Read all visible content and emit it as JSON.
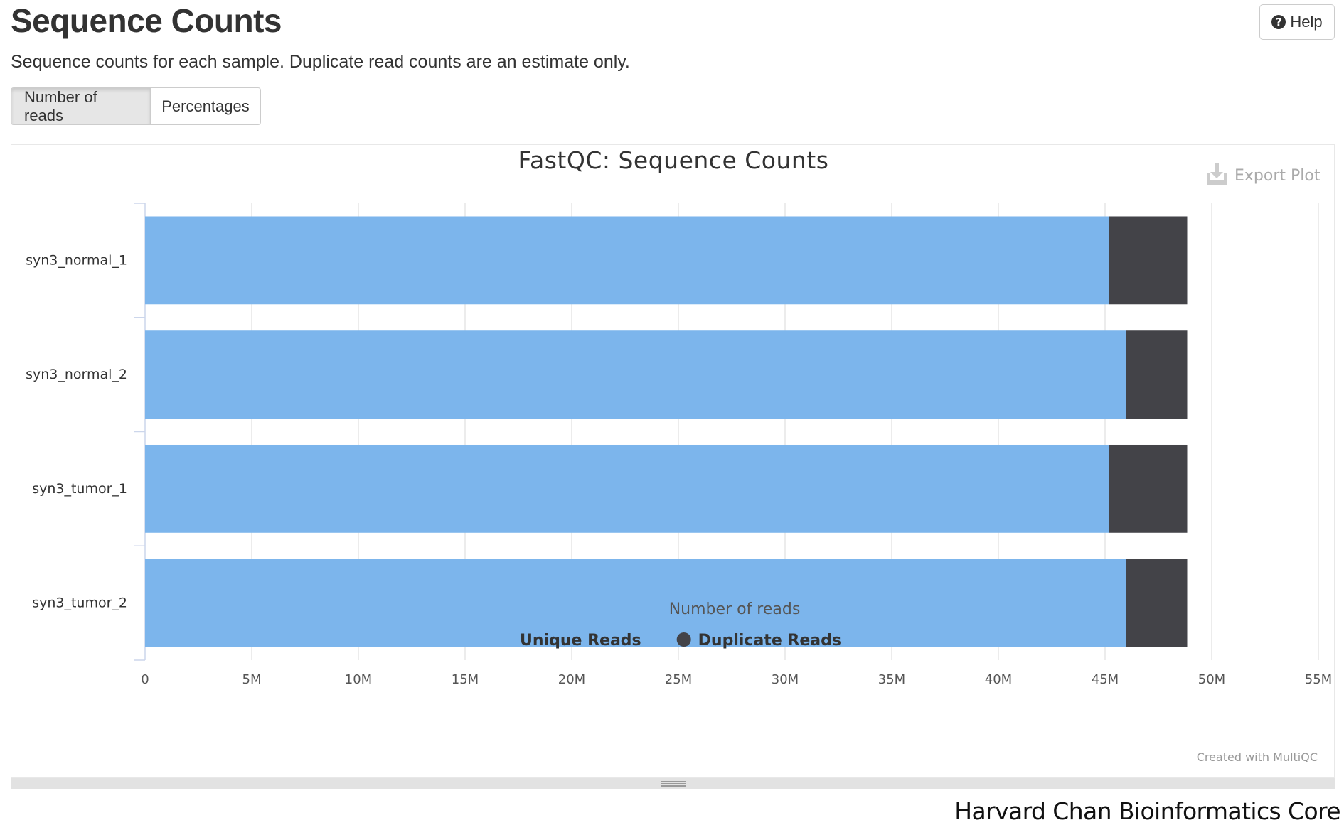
{
  "page": {
    "title": "Sequence Counts",
    "description": "Sequence counts for each sample. Duplicate read counts are an estimate only.",
    "help_label": "Help",
    "tabs": [
      {
        "label": "Number of reads",
        "active": true
      },
      {
        "label": "Percentages",
        "active": false
      }
    ],
    "export_label": "Export Plot",
    "created_with": "Created with MultiQC",
    "credit": "Harvard Chan Bioinformatics Core"
  },
  "chart_data": {
    "type": "bar",
    "orientation": "horizontal",
    "stacked": true,
    "title": "FastQC: Sequence Counts",
    "xlabel": "Number of reads",
    "ylabel": "",
    "xlim": [
      0,
      55000000
    ],
    "x_ticks": [
      0,
      5000000,
      10000000,
      15000000,
      20000000,
      25000000,
      30000000,
      35000000,
      40000000,
      45000000,
      50000000,
      55000000
    ],
    "x_tick_labels": [
      "0",
      "5M",
      "10M",
      "15M",
      "20M",
      "25M",
      "30M",
      "35M",
      "40M",
      "45M",
      "50M",
      "55M"
    ],
    "categories": [
      "syn3_normal_1",
      "syn3_normal_2",
      "syn3_tumor_1",
      "syn3_tumor_2"
    ],
    "series": [
      {
        "name": "Unique Reads",
        "color": "#7cb5ec",
        "values": [
          45200000,
          46000000,
          45200000,
          46000000
        ]
      },
      {
        "name": "Duplicate Reads",
        "color": "#434348",
        "values": [
          3650000,
          2850000,
          3650000,
          2850000
        ]
      }
    ],
    "grid": true,
    "legend_position": "bottom-center"
  }
}
